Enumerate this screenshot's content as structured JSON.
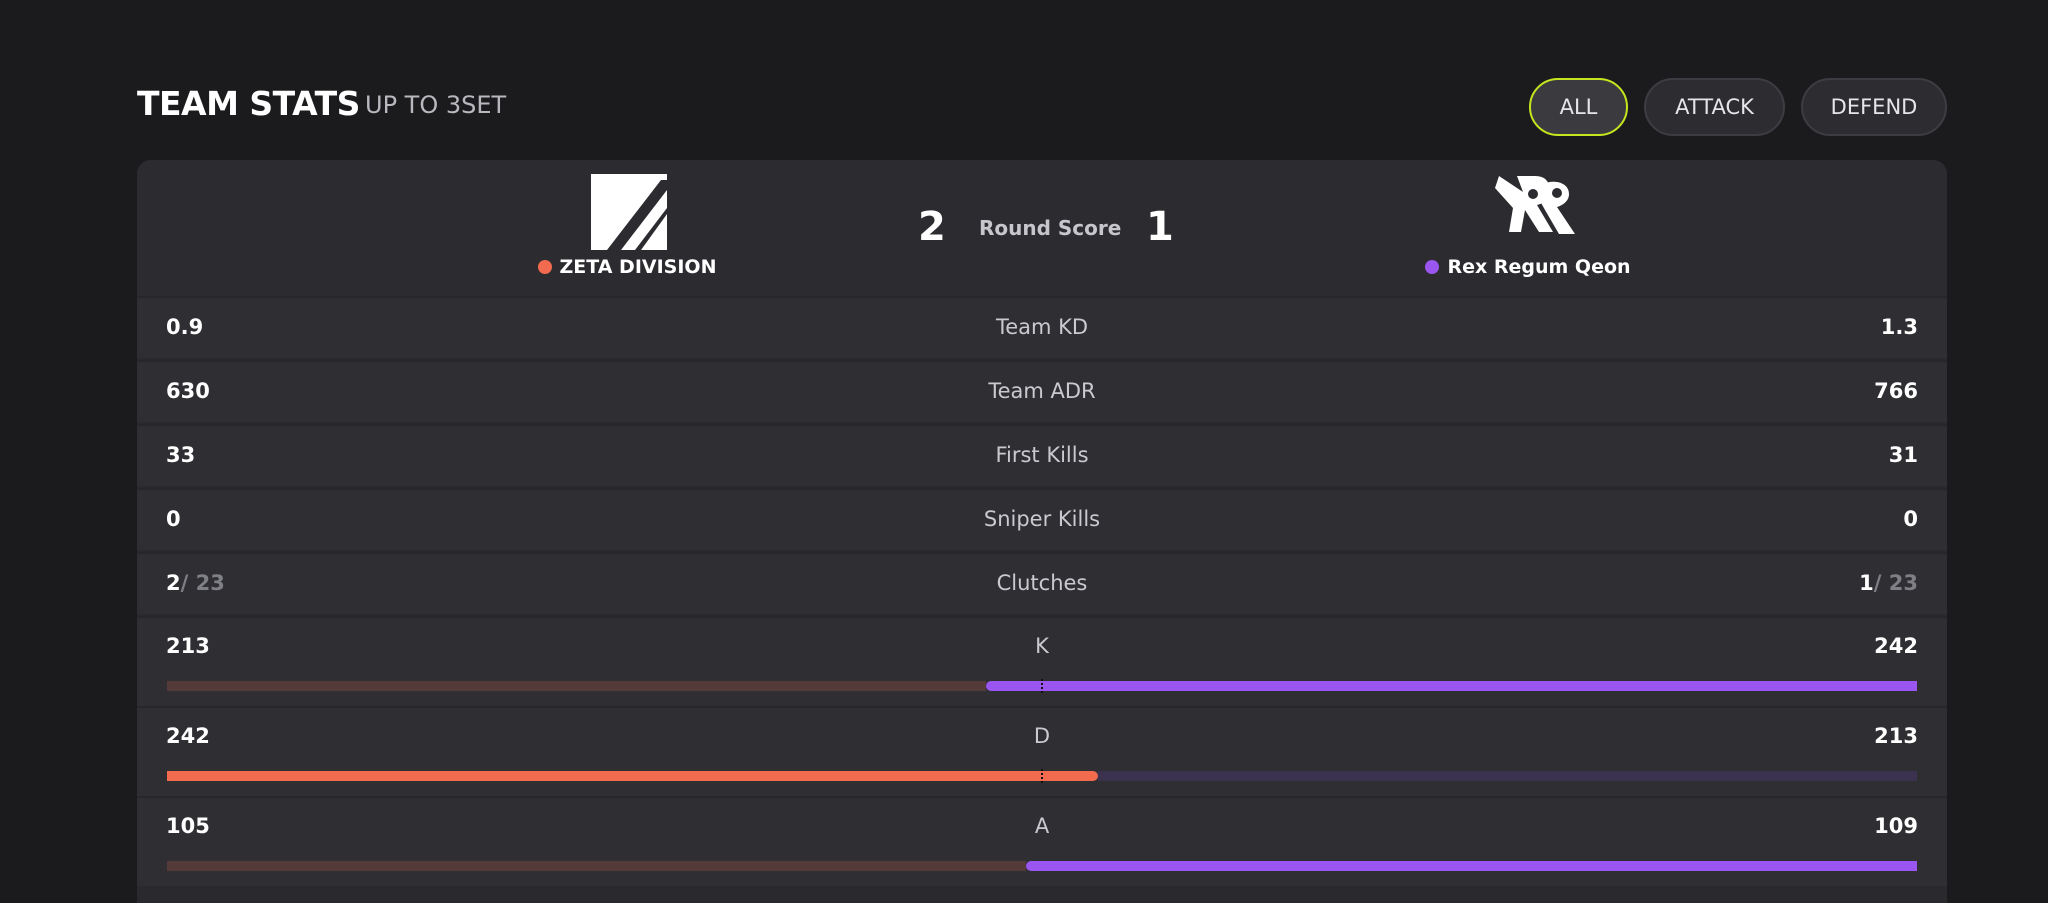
{
  "header": {
    "title": "TEAM STATS",
    "subtitle": "UP TO 3SET",
    "filters": [
      "ALL",
      "ATTACK",
      "DEFEND"
    ],
    "active_filter": "ALL"
  },
  "teams": {
    "left": {
      "name": "ZETA DIVISION",
      "color": "#f26b4f",
      "logo": "zeta-division-logo"
    },
    "right": {
      "name": "Rex Regum Qeon",
      "color": "#9b55f0",
      "logo": "rrq-logo"
    }
  },
  "round_score": {
    "label": "Round Score",
    "left": "2",
    "right": "1"
  },
  "stats": [
    {
      "label": "Team KD",
      "left": "0.9",
      "right": "1.3"
    },
    {
      "label": "Team ADR",
      "left": "630",
      "right": "766"
    },
    {
      "label": "First Kills",
      "left": "33",
      "right": "31"
    },
    {
      "label": "Sniper Kills",
      "left": "0",
      "right": "0"
    }
  ],
  "clutches": {
    "label": "Clutches",
    "left": "2",
    "left_total": "/ 23",
    "right": "1",
    "right_total": "/ 23"
  },
  "bars": [
    {
      "label": "K",
      "left": "213",
      "right": "242",
      "left_value": 213,
      "right_value": 242,
      "leader": "right"
    },
    {
      "label": "D",
      "left": "242",
      "right": "213",
      "left_value": 242,
      "right_value": 213,
      "leader": "left"
    },
    {
      "label": "A",
      "left": "105",
      "right": "109",
      "left_value": 105,
      "right_value": 109,
      "leader": "right"
    }
  ],
  "colors": {
    "left_strong": "#f26b4f",
    "left_dim": "#553a3a",
    "right_strong": "#9b55f0",
    "right_dim": "#3b3250",
    "accent": "#c7e51e"
  }
}
